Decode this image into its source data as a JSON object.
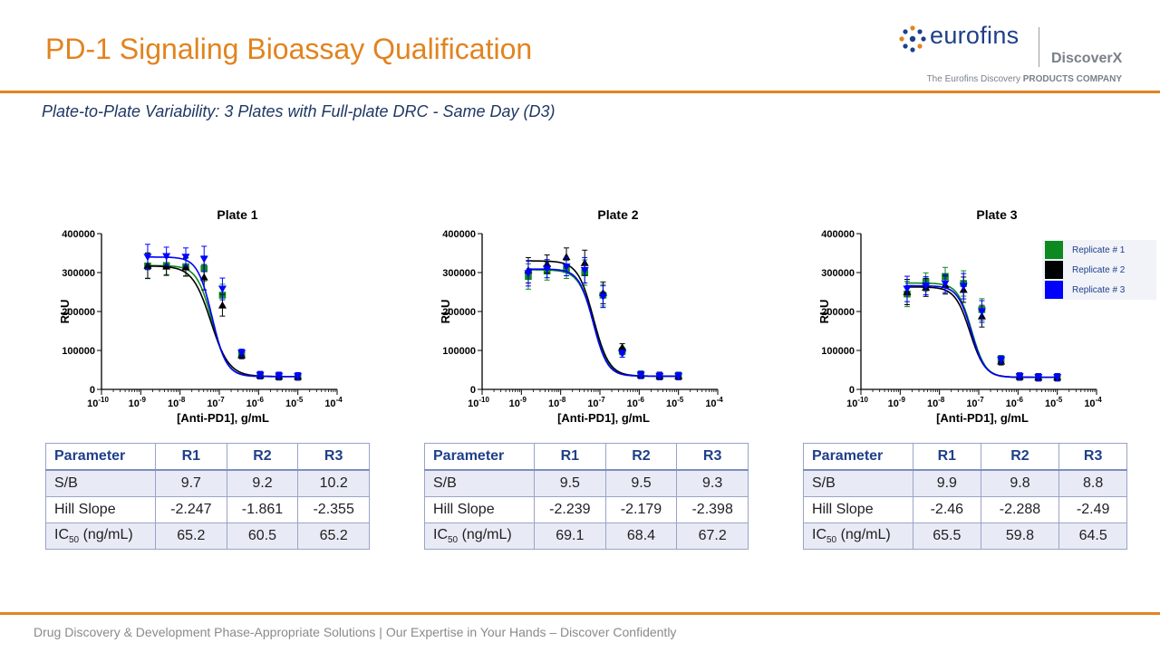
{
  "title": "PD-1 Signaling Bioassay Qualification",
  "subtitle": "Plate-to-Plate Variability: 3 Plates with Full-plate DRC - Same Day (D3)",
  "logo": {
    "brand": "eurofins",
    "sub": "DiscoverX",
    "tagline_start": "The Eurofins Discovery ",
    "tagline_bold": "PRODUCTS COMPANY"
  },
  "footer": "Drug Discovery & Development Phase-Appropriate Solutions | Our Expertise in Your Hands – Discover Confidently",
  "legend": [
    {
      "label": "Replicate # 1",
      "color": "#0d8a1f"
    },
    {
      "label": "Replicate # 2",
      "color": "#000000"
    },
    {
      "label": "Replicate # 3",
      "color": "#0000ff"
    }
  ],
  "tables": [
    {
      "headers": [
        "Parameter",
        "R1",
        "R2",
        "R3"
      ],
      "rows": [
        [
          "S/B",
          "9.7",
          "9.2",
          "10.2"
        ],
        [
          "Hill Slope",
          "-2.247",
          "-1.861",
          "-2.355"
        ]
      ],
      "ic50": {
        "label": "IC",
        "sub": "50",
        "unit": " (ng/mL)",
        "values": [
          "65.2",
          "60.5",
          "65.2"
        ]
      }
    },
    {
      "headers": [
        "Parameter",
        "R1",
        "R2",
        "R3"
      ],
      "rows": [
        [
          "S/B",
          "9.5",
          "9.5",
          "9.3"
        ],
        [
          "Hill Slope",
          "-2.239",
          "-2.179",
          "-2.398"
        ]
      ],
      "ic50": {
        "label": "IC",
        "sub": "50",
        "unit": " (ng/mL)",
        "values": [
          "69.1",
          "68.4",
          "67.2"
        ]
      }
    },
    {
      "headers": [
        "Parameter",
        "R1",
        "R2",
        "R3"
      ],
      "rows": [
        [
          "S/B",
          "9.9",
          "9.8",
          "8.8"
        ],
        [
          "Hill Slope",
          "-2.46",
          "-2.288",
          "-2.49"
        ]
      ],
      "ic50": {
        "label": "IC",
        "sub": "50",
        "unit": " (ng/mL)",
        "values": [
          "65.5",
          "59.8",
          "64.5"
        ]
      }
    }
  ],
  "chart_data": [
    {
      "type": "scatter",
      "title": "Plate 1",
      "xlabel": "[Anti-PD1], g/mL",
      "ylabel": "RLU",
      "xscale": "log",
      "xlim": [
        -10,
        -4
      ],
      "ylim": [
        0,
        400000
      ],
      "yticks": [
        0,
        100000,
        200000,
        300000,
        400000
      ],
      "x": [
        1.5e-09,
        4.5e-09,
        1.4e-08,
        4.1e-08,
        1.2e-07,
        3.7e-07,
        1.1e-06,
        3.3e-06,
        1e-05
      ],
      "series": [
        {
          "name": "Replicate # 1",
          "color": "#0d8a1f",
          "marker": "square",
          "values": [
            317000,
            318000,
            315000,
            310000,
            242000,
            90000,
            36000,
            33000,
            33000
          ],
          "top": 318000,
          "bottom": 33000,
          "ic50": 6.52e-08,
          "hill": -2.247
        },
        {
          "name": "Replicate # 2",
          "color": "#000000",
          "marker": "triangle-up",
          "values": [
            318000,
            316000,
            314000,
            288000,
            216000,
            88000,
            36000,
            34000,
            33000
          ],
          "top": 317000,
          "bottom": 33000,
          "ic50": 6.05e-08,
          "hill": -1.861
        },
        {
          "name": "Replicate # 3",
          "color": "#0000ff",
          "marker": "triangle-down",
          "values": [
            340000,
            342000,
            340000,
            335000,
            258000,
            94000,
            37000,
            35000,
            34000
          ],
          "top": 340000,
          "bottom": 33000,
          "ic50": 6.52e-08,
          "hill": -2.355
        }
      ]
    },
    {
      "type": "scatter",
      "title": "Plate 2",
      "xlabel": "[Anti-PD1], g/mL",
      "ylabel": "RLU",
      "xscale": "log",
      "xlim": [
        -10,
        -4
      ],
      "ylim": [
        0,
        400000
      ],
      "yticks": [
        0,
        100000,
        200000,
        300000,
        400000
      ],
      "x": [
        1.5e-09,
        4.5e-09,
        1.4e-08,
        4.1e-08,
        1.2e-07,
        3.7e-07,
        1.1e-06,
        3.3e-06,
        1e-05
      ],
      "series": [
        {
          "name": "Replicate # 1",
          "color": "#0d8a1f",
          "marker": "square",
          "values": [
            290000,
            304000,
            308000,
            300000,
            242000,
            98000,
            38000,
            34000,
            35000
          ],
          "top": 307000,
          "bottom": 34000,
          "ic50": 6.91e-08,
          "hill": -2.239
        },
        {
          "name": "Replicate # 2",
          "color": "#000000",
          "marker": "triangle-up",
          "values": [
            306000,
            322000,
            340000,
            325000,
            248000,
            108000,
            37000,
            35000,
            34000
          ],
          "top": 330000,
          "bottom": 34000,
          "ic50": 6.84e-08,
          "hill": -2.179
        },
        {
          "name": "Replicate # 3",
          "color": "#0000ff",
          "marker": "triangle-down",
          "values": [
            298000,
            310000,
            315000,
            306000,
            238000,
            92000,
            37000,
            34000,
            34000
          ],
          "top": 309000,
          "bottom": 34000,
          "ic50": 6.72e-08,
          "hill": -2.398
        }
      ]
    },
    {
      "type": "scatter",
      "title": "Plate 3",
      "xlabel": "[Anti-PD1], g/mL",
      "ylabel": "RLU",
      "xscale": "log",
      "xlim": [
        -10,
        -4
      ],
      "ylim": [
        0,
        400000
      ],
      "yticks": [
        0,
        100000,
        200000,
        300000,
        400000
      ],
      "x": [
        1.5e-09,
        4.5e-09,
        1.4e-08,
        4.1e-08,
        1.2e-07,
        3.7e-07,
        1.1e-06,
        3.3e-06,
        1e-05
      ],
      "series": [
        {
          "name": "Replicate # 1",
          "color": "#0d8a1f",
          "marker": "square",
          "values": [
            245000,
            276000,
            290000,
            272000,
            205000,
            78000,
            33000,
            31000,
            31000
          ],
          "top": 273000,
          "bottom": 31000,
          "ic50": 6.55e-08,
          "hill": -2.46
        },
        {
          "name": "Replicate # 2",
          "color": "#000000",
          "marker": "triangle-up",
          "values": [
            250000,
            262000,
            268000,
            256000,
            188000,
            72000,
            33000,
            31000,
            31000
          ],
          "top": 263000,
          "bottom": 31000,
          "ic50": 5.98e-08,
          "hill": -2.288
        },
        {
          "name": "Replicate # 3",
          "color": "#0000ff",
          "marker": "triangle-down",
          "values": [
            258000,
            266000,
            272000,
            265000,
            200000,
            76000,
            33000,
            31000,
            31000
          ],
          "top": 266000,
          "bottom": 31000,
          "ic50": 6.45e-08,
          "hill": -2.49
        }
      ]
    }
  ]
}
